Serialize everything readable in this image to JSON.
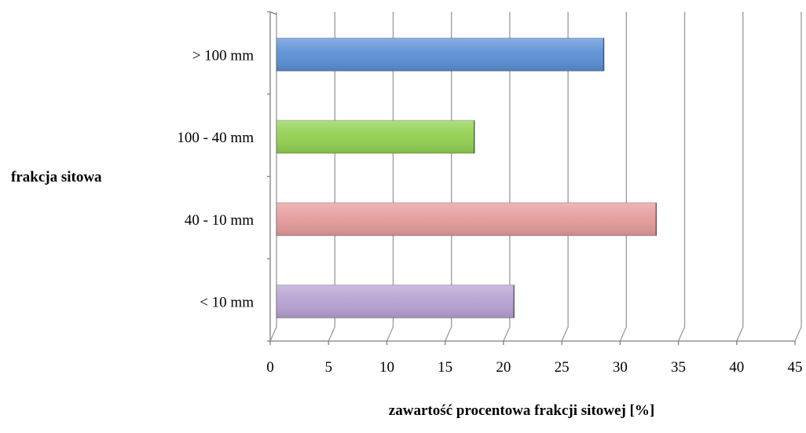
{
  "chart_data": {
    "type": "bar",
    "orientation": "horizontal",
    "style": "3d",
    "categories": [
      "> 100 mm",
      "100 - 40 mm",
      "40 - 10 mm",
      "< 10 mm"
    ],
    "values": [
      28.6,
      17.5,
      33.1,
      20.9
    ],
    "colors": [
      "#5b8fd6",
      "#92d050",
      "#e59b9b",
      "#b7a1d2"
    ],
    "title": "",
    "xlabel": "zawartość  procentowa  frakcji sitowej [%]",
    "ylabel": "frakcja  sitowa",
    "xlim": [
      0,
      45
    ],
    "xticks": [
      0,
      5,
      10,
      15,
      20,
      25,
      30,
      35,
      40,
      45
    ],
    "grid": true,
    "legend": "none"
  }
}
